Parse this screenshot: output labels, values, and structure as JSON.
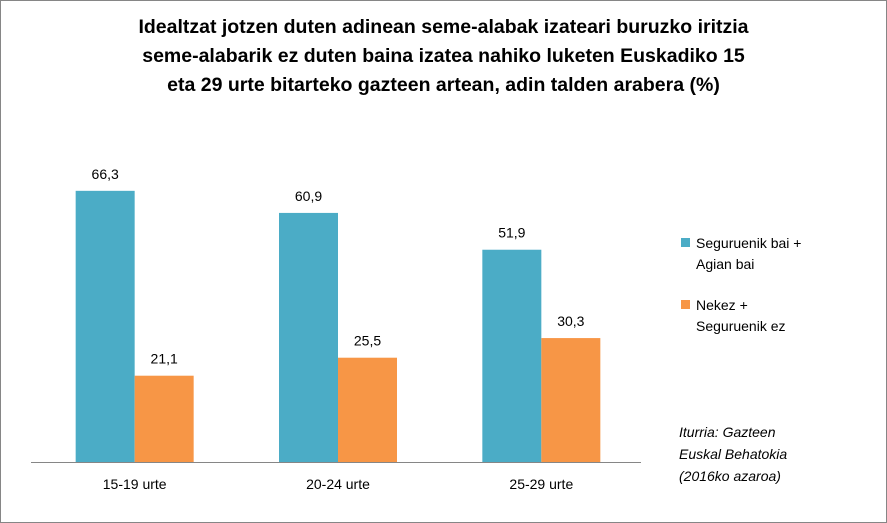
{
  "chart_data": {
    "type": "bar",
    "title_lines": [
      "Idealtzat jotzen duten adinean seme-alabak izateari buruzko iritzia",
      "seme-alabarik ez duten baina izatea nahiko luketen Euskadiko 15",
      "eta 29 urte bitarteko gazteen artean, adin talden arabera (%)"
    ],
    "categories": [
      "15-19 urte",
      "20-24 urte",
      "25-29 urte"
    ],
    "series": [
      {
        "name": "Seguruenik bai + Agian bai",
        "name_lines": [
          "Seguruenik bai +",
          "Agian bai"
        ],
        "color": "#4BACC6",
        "values": [
          66.3,
          60.9,
          51.9
        ],
        "labels": [
          "66,3",
          "60,9",
          "51,9"
        ]
      },
      {
        "name": "Nekez + Seguruenik ez",
        "name_lines": [
          "Nekez +",
          "Seguruenik ez"
        ],
        "color": "#F79646",
        "values": [
          21.1,
          25.5,
          30.3
        ],
        "labels": [
          "21,1",
          "25,5",
          "30,3"
        ]
      }
    ],
    "legend_position": "right",
    "grid": false,
    "ylim": [
      0,
      75
    ],
    "source_lines": [
      "Iturria: Gazteen",
      "Euskal Behatokia",
      "(2016ko azaroa)"
    ]
  }
}
